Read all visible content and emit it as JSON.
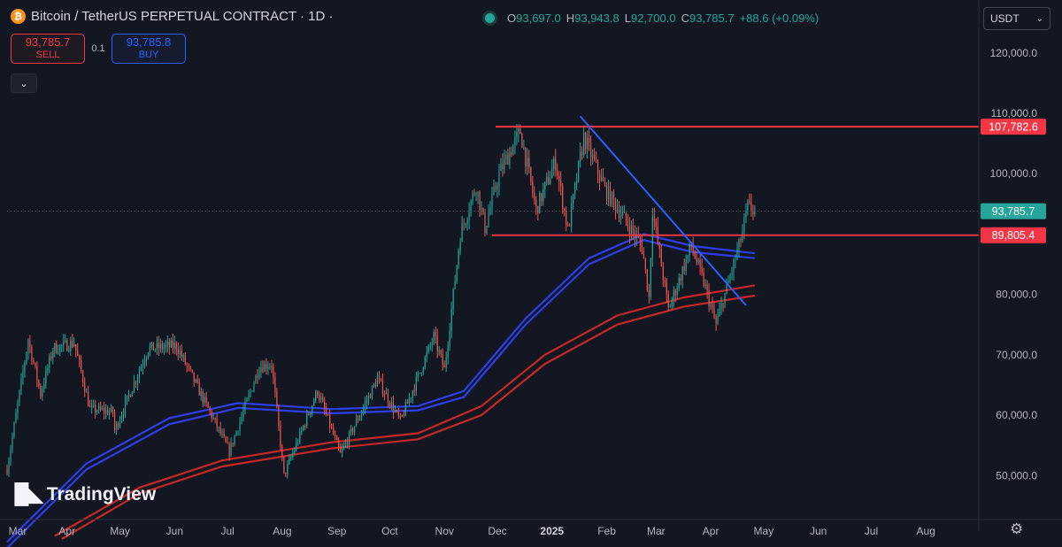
{
  "header": {
    "title": "Bitcoin / TetherUS PERPETUAL CONTRACT · 1D ·",
    "ohlc": {
      "o_label": "O",
      "o": "93,697.0",
      "h_label": "H",
      "h": "93,943.8",
      "l_label": "L",
      "l": "92,700.0",
      "c_label": "C",
      "c": "93,785.7",
      "change": "+88.6 (+0.09%)"
    },
    "currency": "USDT"
  },
  "trade": {
    "sell_price": "93,785.7",
    "sell_label": "SELL",
    "spread": "0.1",
    "buy_price": "93,785.8",
    "buy_label": "BUY"
  },
  "brand": "TradingView",
  "icons": {
    "logo": "bitcoin-logo-icon",
    "collapse": "chevron-down-icon",
    "settings": "gear-icon",
    "status": "market-status-dot-icon",
    "currency": "chevron-down-icon",
    "brand": "tradingview-logo-icon"
  },
  "colors": {
    "background": "#131722",
    "up": "#26a69a",
    "down": "#ef5350",
    "ema_blue": "#2f3ee8",
    "ema_red": "#c62828",
    "level": "#f23645",
    "trendline": "#2962ff"
  },
  "chart_data": {
    "type": "candlestick",
    "x_ticks": [
      "Mar",
      "Apr",
      "May",
      "Jun",
      "Jul",
      "Aug",
      "Sep",
      "Oct",
      "Nov",
      "Dec",
      "2025",
      "Feb",
      "Mar",
      "Apr",
      "May",
      "Jun",
      "Jul",
      "Aug"
    ],
    "x_start": "2024-03-01",
    "y_ticks": [
      50000,
      60000,
      70000,
      80000,
      90000,
      100000,
      110000,
      120000
    ],
    "y_tick_labels": [
      "50,000.0",
      "60,000.0",
      "70,000.0",
      "80,000.0",
      "90,000.0",
      "100,000.0",
      "110,000.0",
      "120,000.0"
    ],
    "ylim": [
      43000,
      127000
    ],
    "grid": false,
    "price_axis_labels": [
      {
        "value": 107782.6,
        "label": "107,782.6",
        "color": "#f23645"
      },
      {
        "value": 93785.7,
        "label": "93,785.7",
        "color": "#26a69a"
      },
      {
        "value": 89805.4,
        "label": "89,805.4",
        "color": "#f23645"
      }
    ],
    "horizontal_levels": [
      {
        "value": 107782.6,
        "from": "2024-12-03",
        "to": "2025-08-31"
      },
      {
        "value": 89805.4,
        "from": "2024-12-01",
        "to": "2025-08-31"
      }
    ],
    "trendline": {
      "from": [
        "2025-01-20",
        109500
      ],
      "to": [
        "2025-04-24",
        78200
      ]
    },
    "price_path": [
      [
        "2024-03-01",
        51000
      ],
      [
        "2024-03-13",
        72500
      ],
      [
        "2024-03-20",
        63500
      ],
      [
        "2024-03-27",
        71000
      ],
      [
        "2024-04-08",
        72000
      ],
      [
        "2024-04-17",
        61000
      ],
      [
        "2024-04-30",
        60500
      ],
      [
        "2024-05-01",
        57500
      ],
      [
        "2024-05-20",
        71000
      ],
      [
        "2024-06-05",
        71500
      ],
      [
        "2024-06-24",
        60500
      ],
      [
        "2024-07-05",
        54000
      ],
      [
        "2024-07-22",
        68000
      ],
      [
        "2024-07-29",
        68500
      ],
      [
        "2024-08-05",
        50000
      ],
      [
        "2024-08-24",
        64000
      ],
      [
        "2024-09-06",
        53500
      ],
      [
        "2024-09-27",
        66000
      ],
      [
        "2024-10-10",
        59000
      ],
      [
        "2024-10-29",
        73000
      ],
      [
        "2024-11-04",
        67500
      ],
      [
        "2024-11-13",
        90000
      ],
      [
        "2024-11-22",
        98000
      ],
      [
        "2024-11-27",
        91000
      ],
      [
        "2024-12-05",
        100000
      ],
      [
        "2024-12-17",
        107000
      ],
      [
        "2024-12-26",
        94000
      ],
      [
        "2025-01-06",
        102000
      ],
      [
        "2025-01-13",
        90500
      ],
      [
        "2025-01-22",
        106000
      ],
      [
        "2025-02-03",
        97500
      ],
      [
        "2025-02-24",
        88000
      ],
      [
        "2025-02-28",
        79500
      ],
      [
        "2025-03-02",
        94000
      ],
      [
        "2025-03-11",
        77500
      ],
      [
        "2025-03-24",
        88000
      ],
      [
        "2025-03-31",
        82000
      ],
      [
        "2025-04-07",
        75000
      ],
      [
        "2025-04-21",
        89000
      ],
      [
        "2025-04-25",
        94500
      ],
      [
        "2025-04-29",
        93785.7
      ]
    ],
    "moving_averages": [
      {
        "color": "#2f3ee8",
        "points": [
          [
            "2024-03-01",
            39000
          ],
          [
            "2024-04-15",
            52000
          ],
          [
            "2024-06-01",
            59500
          ],
          [
            "2024-07-10",
            62000
          ],
          [
            "2024-09-01",
            61000
          ],
          [
            "2024-10-20",
            61500
          ],
          [
            "2024-11-15",
            64000
          ],
          [
            "2024-12-20",
            76000
          ],
          [
            "2025-01-25",
            86000
          ],
          [
            "2025-02-25",
            90000
          ],
          [
            "2025-03-25",
            88000
          ],
          [
            "2025-04-29",
            86800
          ]
        ]
      },
      {
        "color": "#2f3ee8",
        "points": [
          [
            "2024-03-01",
            38000
          ],
          [
            "2024-04-15",
            51000
          ],
          [
            "2024-06-01",
            58500
          ],
          [
            "2024-07-10",
            61200
          ],
          [
            "2024-09-01",
            60300
          ],
          [
            "2024-10-20",
            60800
          ],
          [
            "2024-11-15",
            63000
          ],
          [
            "2024-12-20",
            75000
          ],
          [
            "2025-01-25",
            85000
          ],
          [
            "2025-02-25",
            89000
          ],
          [
            "2025-03-25",
            87000
          ],
          [
            "2025-04-29",
            86000
          ]
        ]
      },
      {
        "color": "#c62828",
        "points": [
          [
            "2024-03-28",
            40000
          ],
          [
            "2024-05-15",
            48000
          ],
          [
            "2024-07-01",
            52500
          ],
          [
            "2024-09-01",
            55500
          ],
          [
            "2024-10-20",
            57000
          ],
          [
            "2024-11-25",
            61500
          ],
          [
            "2024-12-31",
            70000
          ],
          [
            "2025-02-10",
            76500
          ],
          [
            "2025-03-20",
            79500
          ],
          [
            "2025-04-29",
            81500
          ]
        ]
      },
      {
        "color": "#c62828",
        "points": [
          [
            "2024-04-01",
            39500
          ],
          [
            "2024-05-15",
            47000
          ],
          [
            "2024-07-01",
            51500
          ],
          [
            "2024-09-01",
            54500
          ],
          [
            "2024-10-20",
            56000
          ],
          [
            "2024-11-25",
            60000
          ],
          [
            "2024-12-31",
            68500
          ],
          [
            "2025-02-10",
            75000
          ],
          [
            "2025-03-20",
            78000
          ],
          [
            "2025-04-29",
            79800
          ]
        ]
      }
    ]
  }
}
